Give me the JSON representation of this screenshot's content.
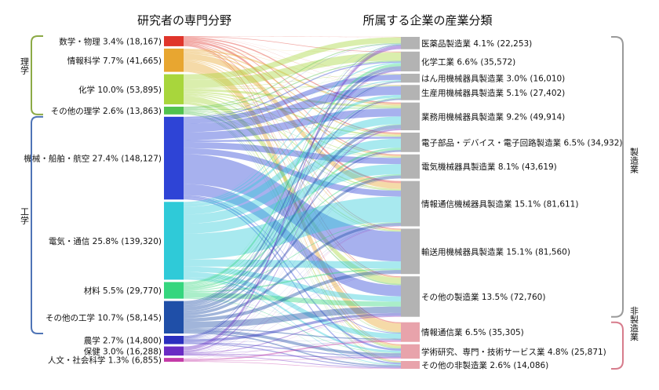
{
  "chart_data": {
    "type": "sankey",
    "left_title": "研究者の専門分野",
    "right_title": "所属する企業の産業分類",
    "left_groups": [
      {
        "label": "理学",
        "color": "#8caa46",
        "members": [
          "数学・物理",
          "情報科学",
          "化学",
          "その他の理学"
        ]
      },
      {
        "label": "工学",
        "color": "#4f74b6",
        "members": [
          "機械・船舶・航空",
          "電気・通信",
          "材料",
          "その他の工学"
        ]
      }
    ],
    "right_groups": [
      {
        "label": "製造業",
        "color": "#9a9a9a"
      },
      {
        "label": "非製造業",
        "color": "#d77c8c"
      }
    ],
    "left_nodes": [
      {
        "name": "数学・物理",
        "pct": 3.4,
        "value": 18167,
        "label": "数学・物理 3.4% (18,167)",
        "color": "#e0352b"
      },
      {
        "name": "情報科学",
        "pct": 7.7,
        "value": 41665,
        "label": "情報科学 7.7% (41,665)",
        "color": "#e8a630"
      },
      {
        "name": "化学",
        "pct": 10.0,
        "value": 53895,
        "label": "化学 10.0% (53,895)",
        "color": "#a8d63c"
      },
      {
        "name": "その他の理学",
        "pct": 2.6,
        "value": 13863,
        "label": "その他の理学 2.6% (13,863)",
        "color": "#52c24e"
      },
      {
        "name": "機械・船舶・航空",
        "pct": 27.4,
        "value": 148127,
        "label": "機械・船舶・航空 27.4% (148,127)",
        "color": "#2e44d6"
      },
      {
        "name": "電気・通信",
        "pct": 25.8,
        "value": 139320,
        "label": "電気・通信 25.8% (139,320)",
        "color": "#2fcad8"
      },
      {
        "name": "材料",
        "pct": 5.5,
        "value": 29770,
        "label": "材料 5.5% (29,770)",
        "color": "#35d67e"
      },
      {
        "name": "その他の工学",
        "pct": 10.7,
        "value": 58145,
        "label": "その他の工学 10.7% (58,145)",
        "color": "#1f4fa8"
      },
      {
        "name": "農学",
        "pct": 2.7,
        "value": 14800,
        "label": "農学 2.7% (14,800)",
        "color": "#2b2fbf"
      },
      {
        "name": "保健",
        "pct": 3.0,
        "value": 16288,
        "label": "保健 3.0% (16,288)",
        "color": "#6a2bc4"
      },
      {
        "name": "人文・社会科学",
        "pct": 1.3,
        "value": 6855,
        "label": "人文・社会科学 1.3% (6,855)",
        "color": "#c43aa8"
      }
    ],
    "right_nodes": [
      {
        "name": "医薬品製造業",
        "pct": 4.1,
        "value": 22253,
        "label": "医薬品製造業 4.1% (22,253)",
        "group": "製造業"
      },
      {
        "name": "化学工業",
        "pct": 6.6,
        "value": 35572,
        "label": "化学工業 6.6% (35,572)",
        "group": "製造業"
      },
      {
        "name": "はん用機械器具製造業",
        "pct": 3.0,
        "value": 16010,
        "label": "はん用機械器具製造業 3.0% (16,010)",
        "group": "製造業"
      },
      {
        "name": "生産用機械器具製造業",
        "pct": 5.1,
        "value": 27402,
        "label": "生産用機械器具製造業 5.1% (27,402)",
        "group": "製造業"
      },
      {
        "name": "業務用機械器具製造業",
        "pct": 9.2,
        "value": 49914,
        "label": "業務用機械器具製造業 9.2% (49,914)",
        "group": "製造業"
      },
      {
        "name": "電子部品・デバイス・電子回路製造業",
        "pct": 6.5,
        "value": 34932,
        "label": "電子部品・デバイス・電子回路製造業 6.5% (34,932)",
        "group": "製造業"
      },
      {
        "name": "電気機械器具製造業",
        "pct": 8.1,
        "value": 43619,
        "label": "電気機械器具製造業 8.1% (43,619)",
        "group": "製造業"
      },
      {
        "name": "情報通信機械器具製造業",
        "pct": 15.1,
        "value": 81611,
        "label": "情報通信機械器具製造業 15.1% (81,611)",
        "group": "製造業"
      },
      {
        "name": "輸送用機械器具製造業",
        "pct": 15.1,
        "value": 81560,
        "label": "輸送用機械器具製造業 15.1% (81,560)",
        "group": "製造業"
      },
      {
        "name": "その他の製造業",
        "pct": 13.5,
        "value": 72760,
        "label": "その他の製造業 13.5% (72,760)",
        "group": "製造業"
      },
      {
        "name": "情報通信業",
        "pct": 6.5,
        "value": 35305,
        "label": "情報通信業 6.5% (35,305)",
        "group": "非製造業"
      },
      {
        "name": "学術研究、専門・技術サービス業",
        "pct": 4.8,
        "value": 25871,
        "label": "学術研究、専門・技術サービス業 4.8% (25,871)",
        "group": "非製造業"
      },
      {
        "name": "その他の非製造業",
        "pct": 2.6,
        "value": 14086,
        "label": "その他の非製造業 2.6% (14,086)",
        "group": "非製造業"
      }
    ],
    "right_node_color": "#b3b3b3",
    "right_nonmfg_color": "#e8a3ab"
  }
}
